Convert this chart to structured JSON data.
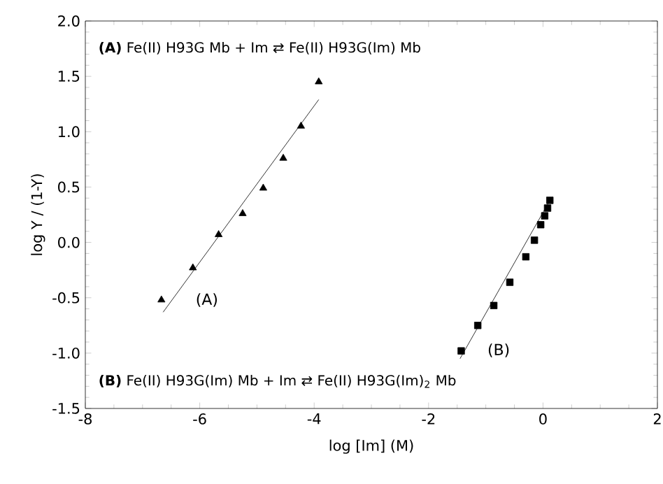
{
  "chart_data": {
    "type": "scatter",
    "xlabel": "log [Im] (M)",
    "ylabel": "log Y / (1-Y)",
    "xlim": [
      -8,
      2
    ],
    "xticks": [
      -8,
      -6,
      -4,
      -2,
      0,
      2
    ],
    "ylim": [
      -1.5,
      2
    ],
    "yticks": [
      {
        "value": -1.5,
        "label": "-1.5"
      },
      {
        "value": -1,
        "label": "-1.0"
      },
      {
        "value": -0.5,
        "label": "-0.5"
      },
      {
        "value": 0,
        "label": "0.0"
      },
      {
        "value": 0.5,
        "label": "0.5"
      },
      {
        "value": 1,
        "label": "1.0"
      },
      {
        "value": 1.5,
        "label": "1.5"
      },
      {
        "value": 2,
        "label": "2.0"
      }
    ],
    "grid": false,
    "series": [
      {
        "marker": "triangle",
        "color": "#000000",
        "x": [
          -6.67,
          -6.12,
          -5.67,
          -5.25,
          -4.89,
          -4.54,
          -4.23,
          -3.92
        ],
        "values": [
          -0.52,
          -0.23,
          0.07,
          0.26,
          0.49,
          0.76,
          1.05,
          1.45
        ]
      },
      {
        "type": "line",
        "marker": "none",
        "color": "#000000",
        "x": [
          -6.64,
          -3.92
        ],
        "values": [
          -0.63,
          1.29
        ]
      },
      {
        "marker": "square",
        "color": "#000000",
        "x": [
          -1.43,
          -1.14,
          -0.86,
          -0.58,
          -0.3,
          -0.15,
          -0.04,
          0.03,
          0.08,
          0.12
        ],
        "values": [
          -0.98,
          -0.75,
          -0.57,
          -0.36,
          -0.13,
          0.02,
          0.16,
          0.24,
          0.31,
          0.38
        ]
      },
      {
        "type": "line",
        "marker": "none",
        "color": "#000000",
        "x": [
          -1.45,
          0.12
        ],
        "values": [
          -1.05,
          0.38
        ]
      }
    ],
    "annotations": [
      "**(A)** Fe(II) H93G Mb + Im ⇄ Fe(II) H93G(Im) Mb",
      "**(B)** Fe(II) H93G(Im) Mb + Im ⇄ Fe(II) H93G(Im)$_{2}$ Mb",
      "(A)",
      "(B)"
    ]
  }
}
